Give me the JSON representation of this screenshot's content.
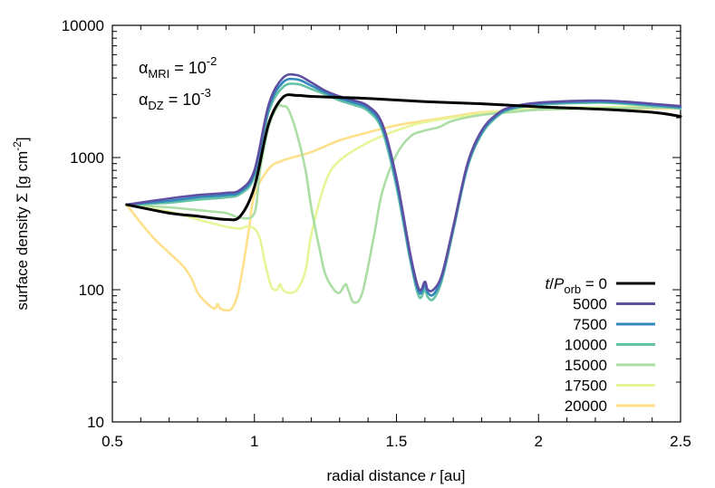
{
  "chart_data": {
    "type": "line",
    "title": "",
    "xlabel": "radial distance r [au]",
    "xlabel_parts": [
      "radial distance ",
      "r",
      " [au]"
    ],
    "ylabel": "surface density Σ [g cm⁻²]",
    "ylabel_parts": [
      "surface density Σ [g cm",
      "-2",
      "]"
    ],
    "xlim": [
      0.5,
      2.5
    ],
    "ylim": [
      10,
      10000
    ],
    "yscale": "log",
    "xticks": [
      0.5,
      1,
      1.5,
      2,
      2.5
    ],
    "xtick_labels": [
      "0.5",
      "1",
      "1.5",
      "2",
      "2.5"
    ],
    "yticks": [
      10,
      100,
      1000,
      10000
    ],
    "ytick_labels": [
      "10",
      "100",
      "1000",
      "10000"
    ],
    "grid": false,
    "legend_position": "bottom-right",
    "legend_title_parts": [
      "t",
      "/",
      "P",
      "orb",
      " = 0"
    ],
    "annotations": [
      {
        "symbol": "α",
        "subscript": "MRI",
        "text": " = 10",
        "superscript": "-2"
      },
      {
        "symbol": "α",
        "subscript": "DZ",
        "text": " = 10",
        "superscript": "-3"
      }
    ],
    "series": [
      {
        "name": "0",
        "color": "#000000",
        "x": [
          0.55,
          0.7,
          0.8,
          0.9,
          0.95,
          1.0,
          1.05,
          1.1,
          1.15,
          1.2,
          1.3,
          1.4,
          1.6,
          1.8,
          2.0,
          2.2,
          2.4,
          2.5
        ],
        "y": [
          440,
          380,
          360,
          340,
          360,
          600,
          1800,
          2850,
          2950,
          2900,
          2850,
          2800,
          2650,
          2550,
          2420,
          2330,
          2200,
          2050
        ]
      },
      {
        "name": "5000",
        "color": "#5e4fa2",
        "x": [
          0.55,
          0.7,
          0.8,
          0.9,
          0.95,
          1.0,
          1.05,
          1.1,
          1.15,
          1.2,
          1.25,
          1.3,
          1.35,
          1.4,
          1.45,
          1.5,
          1.55,
          1.58,
          1.6,
          1.61,
          1.63,
          1.66,
          1.7,
          1.75,
          1.8,
          1.85,
          1.9,
          2.0,
          2.2,
          2.3,
          2.4,
          2.5
        ],
        "y": [
          440,
          490,
          520,
          540,
          570,
          800,
          2500,
          4000,
          4200,
          3700,
          3200,
          2900,
          2700,
          2450,
          1800,
          700,
          180,
          100,
          115,
          100,
          100,
          130,
          300,
          900,
          1600,
          2100,
          2400,
          2600,
          2700,
          2650,
          2550,
          2450
        ]
      },
      {
        "name": "7500",
        "color": "#3288bd",
        "x": [
          0.55,
          0.7,
          0.8,
          0.9,
          0.95,
          1.0,
          1.05,
          1.1,
          1.15,
          1.2,
          1.25,
          1.3,
          1.35,
          1.4,
          1.45,
          1.5,
          1.55,
          1.58,
          1.6,
          1.61,
          1.63,
          1.66,
          1.7,
          1.75,
          1.8,
          1.85,
          1.9,
          2.0,
          2.2,
          2.3,
          2.4,
          2.5
        ],
        "y": [
          440,
          470,
          500,
          520,
          550,
          760,
          2350,
          3700,
          3900,
          3500,
          3100,
          2800,
          2600,
          2350,
          1700,
          650,
          170,
          95,
          108,
          95,
          92,
          125,
          290,
          870,
          1550,
          2050,
          2350,
          2550,
          2650,
          2600,
          2500,
          2400
        ]
      },
      {
        "name": "10000",
        "color": "#66c2a5",
        "x": [
          0.55,
          0.7,
          0.8,
          0.9,
          0.95,
          1.0,
          1.05,
          1.1,
          1.15,
          1.2,
          1.25,
          1.3,
          1.35,
          1.4,
          1.45,
          1.5,
          1.55,
          1.58,
          1.6,
          1.61,
          1.63,
          1.66,
          1.7,
          1.75,
          1.8,
          1.85,
          1.9,
          2.0,
          2.2,
          2.3,
          2.4,
          2.5
        ],
        "y": [
          440,
          455,
          480,
          500,
          530,
          720,
          2200,
          3400,
          3600,
          3300,
          3000,
          2700,
          2500,
          2250,
          1600,
          600,
          160,
          88,
          100,
          88,
          85,
          118,
          280,
          840,
          1500,
          2000,
          2300,
          2500,
          2600,
          2550,
          2450,
          2350
        ]
      },
      {
        "name": "15000",
        "color": "#abdda4",
        "x": [
          0.55,
          0.7,
          0.8,
          0.9,
          0.95,
          1.0,
          1.02,
          1.05,
          1.08,
          1.1,
          1.12,
          1.15,
          1.18,
          1.2,
          1.23,
          1.25,
          1.28,
          1.3,
          1.32,
          1.33,
          1.35,
          1.38,
          1.42,
          1.45,
          1.5,
          1.55,
          1.6,
          1.65,
          1.7,
          1.8,
          1.9,
          2.0,
          2.2,
          2.5
        ],
        "y": [
          440,
          420,
          400,
          380,
          350,
          380,
          800,
          1700,
          2400,
          2450,
          2300,
          1500,
          800,
          420,
          200,
          130,
          100,
          95,
          110,
          100,
          80,
          95,
          250,
          550,
          1050,
          1450,
          1600,
          1700,
          1900,
          2100,
          2200,
          2300,
          2350,
          2400
        ]
      },
      {
        "name": "17500",
        "color": "#e6f598",
        "x": [
          0.55,
          0.7,
          0.8,
          0.9,
          0.95,
          0.97,
          1.0,
          1.02,
          1.04,
          1.06,
          1.08,
          1.09,
          1.1,
          1.12,
          1.15,
          1.18,
          1.2,
          1.25,
          1.3,
          1.4,
          1.5,
          1.6,
          1.8,
          2.0,
          2.2,
          2.5
        ],
        "y": [
          440,
          390,
          340,
          300,
          290,
          300,
          290,
          240,
          150,
          105,
          100,
          110,
          100,
          95,
          100,
          140,
          260,
          650,
          950,
          1300,
          1600,
          1850,
          2150,
          2350,
          2400,
          2450
        ]
      },
      {
        "name": "20000",
        "color": "#fee08b",
        "x": [
          0.55,
          0.6,
          0.65,
          0.7,
          0.75,
          0.78,
          0.8,
          0.83,
          0.86,
          0.87,
          0.88,
          0.9,
          0.92,
          0.94,
          0.96,
          0.98,
          1.0,
          1.05,
          1.1,
          1.2,
          1.3,
          1.4,
          1.5,
          1.6,
          1.7,
          1.8,
          2.0,
          2.2,
          2.5
        ],
        "y": [
          440,
          320,
          240,
          190,
          150,
          120,
          95,
          80,
          72,
          78,
          72,
          70,
          72,
          90,
          150,
          280,
          520,
          820,
          950,
          1100,
          1350,
          1550,
          1750,
          1900,
          2050,
          2200,
          2300,
          2350,
          2350
        ]
      }
    ]
  }
}
